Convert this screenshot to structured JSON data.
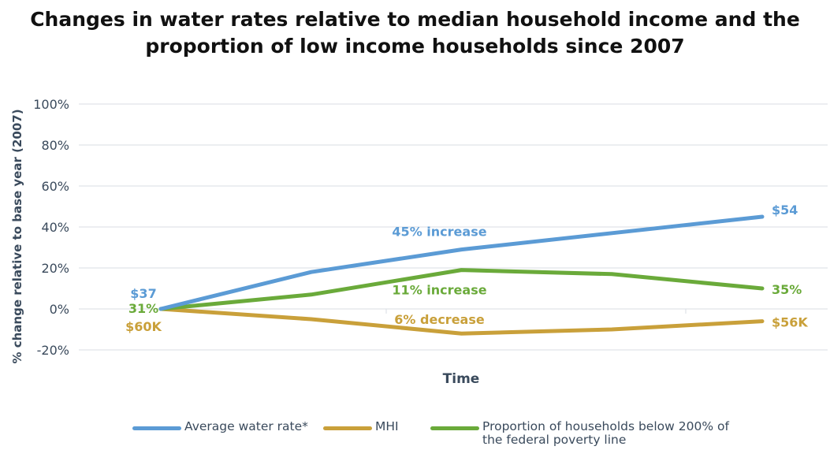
{
  "title_lines": [
    "Changes in water rates relative to median household income and the",
    "proportion of low income households since 2007"
  ],
  "chart_data": {
    "type": "line",
    "title": "Changes in water rates relative to median household income and the proportion of low income households since 2007",
    "xlabel": "Time",
    "ylabel": "% change relative to base year (2007)",
    "ylim": [
      -20,
      100
    ],
    "yticks": [
      -20,
      0,
      20,
      40,
      60,
      80,
      100
    ],
    "ytick_labels": [
      "-20%",
      "0%",
      "20%",
      "40%",
      "60%",
      "80%",
      "100%"
    ],
    "x": [
      0,
      1,
      2,
      3,
      4
    ],
    "grid": true,
    "legend_position": "bottom",
    "series": [
      {
        "name": "Average water rate*",
        "color": "#5b9bd5",
        "values": [
          0,
          18,
          29,
          37,
          45
        ]
      },
      {
        "name": "MHI",
        "color": "#c9a03a",
        "values": [
          0,
          -5,
          -12,
          -10,
          -6
        ]
      },
      {
        "name": "Proportion of households below 200% of the federal poverty line",
        "color": "#6aaa3a",
        "values": [
          0,
          7,
          19,
          17,
          10
        ]
      }
    ],
    "annotations": [
      {
        "text": "$37",
        "x": 0,
        "y": 0,
        "series": 0,
        "pos": "start-top"
      },
      {
        "text": "31%",
        "x": 0,
        "y": 0,
        "series": 2,
        "pos": "start-mid"
      },
      {
        "text": "$60K",
        "x": 0,
        "y": 0,
        "series": 1,
        "pos": "start-bottom"
      },
      {
        "text": "45% increase",
        "x": 2,
        "y": 29,
        "series": 0,
        "pos": "middle"
      },
      {
        "text": "11% increase",
        "x": 2,
        "y": 19,
        "series": 2,
        "pos": "middle"
      },
      {
        "text": "6% decrease",
        "x": 2,
        "y": -12,
        "series": 1,
        "pos": "middle"
      },
      {
        "text": "$54",
        "x": 4,
        "y": 45,
        "series": 0,
        "pos": "end"
      },
      {
        "text": "35%",
        "x": 4,
        "y": 10,
        "series": 2,
        "pos": "end"
      },
      {
        "text": "$56K",
        "x": 4,
        "y": -6,
        "series": 1,
        "pos": "end"
      }
    ]
  },
  "legend": {
    "items": [
      {
        "label_lines": [
          "Average water rate*"
        ],
        "color": "#5b9bd5"
      },
      {
        "label_lines": [
          "MHI"
        ],
        "color": "#c9a03a"
      },
      {
        "label_lines": [
          "Proportion of households below 200% of",
          "the federal poverty line"
        ],
        "color": "#6aaa3a"
      }
    ]
  }
}
